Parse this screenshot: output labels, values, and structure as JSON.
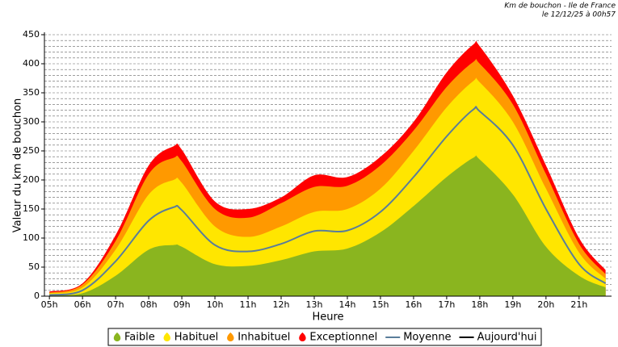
{
  "chart_data": {
    "type": "area",
    "title": "Km de bouchon - Ile de France",
    "subtitle": "le 12/12/25 à 00h57",
    "ylabel": "Valeur du  km de bouchon",
    "xlabel": "Heure",
    "x": [
      5,
      6,
      7,
      8,
      8.75,
      9,
      10,
      11,
      12,
      13,
      14,
      15,
      16,
      17,
      17.8,
      18,
      19,
      20,
      21,
      21.8
    ],
    "series": [
      {
        "name": "Faible",
        "type": "area",
        "color": "#8ab51f",
        "values": [
          2,
          5,
          35,
          80,
          88,
          85,
          55,
          52,
          62,
          77,
          82,
          110,
          155,
          205,
          238,
          235,
          175,
          85,
          35,
          15
        ]
      },
      {
        "name": "Habituel",
        "type": "area",
        "color": "#ffe600",
        "values": [
          5,
          15,
          80,
          175,
          200,
          195,
          120,
          102,
          120,
          145,
          150,
          185,
          250,
          325,
          370,
          368,
          300,
          185,
          75,
          30
        ]
      },
      {
        "name": "Inhabituel",
        "type": "area",
        "color": "#ff9900",
        "values": [
          6,
          20,
          95,
          210,
          238,
          232,
          150,
          135,
          160,
          188,
          190,
          225,
          285,
          360,
          403,
          400,
          330,
          210,
          90,
          38
        ]
      },
      {
        "name": "Exceptionnel",
        "type": "area",
        "color": "#ff0000",
        "values": [
          8,
          22,
          105,
          225,
          258,
          252,
          163,
          150,
          170,
          208,
          205,
          240,
          300,
          385,
          433,
          430,
          345,
          225,
          100,
          45
        ]
      },
      {
        "name": "Moyenne",
        "type": "line",
        "color": "#5a7d9a",
        "values": [
          2,
          10,
          60,
          130,
          153,
          148,
          88,
          77,
          90,
          112,
          113,
          145,
          205,
          275,
          321,
          318,
          260,
          150,
          55,
          22
        ]
      },
      {
        "name": "Aujourd'hui",
        "type": "line",
        "color": "#000000",
        "values": [
          null,
          null,
          null,
          null,
          null,
          null,
          null,
          null,
          null,
          null,
          null,
          null,
          null,
          null,
          null,
          null,
          null,
          null,
          null,
          null
        ]
      }
    ],
    "xlim": [
      4.85,
      21.98
    ],
    "xticks": [
      {
        "value": 5,
        "label": "05h"
      },
      {
        "value": 6,
        "label": "06h"
      },
      {
        "value": 7,
        "label": "07h"
      },
      {
        "value": 8,
        "label": "08h"
      },
      {
        "value": 9,
        "label": "09h"
      },
      {
        "value": 10,
        "label": "10h"
      },
      {
        "value": 11,
        "label": "11h"
      },
      {
        "value": 12,
        "label": "12h"
      },
      {
        "value": 13,
        "label": "13h"
      },
      {
        "value": 14,
        "label": "14h"
      },
      {
        "value": 15,
        "label": "15h"
      },
      {
        "value": 16,
        "label": "16h"
      },
      {
        "value": 17,
        "label": "17h"
      },
      {
        "value": 18,
        "label": "18h"
      },
      {
        "value": 19,
        "label": "19h"
      },
      {
        "value": 20,
        "label": "20h"
      },
      {
        "value": 21,
        "label": "21h"
      }
    ],
    "ylim": [
      0,
      450
    ],
    "yticks": [
      0,
      50,
      100,
      150,
      200,
      250,
      300,
      350,
      400,
      450
    ],
    "yminorticks": [
      0,
      10,
      20,
      30,
      40,
      50,
      60,
      70,
      80,
      90,
      100,
      110,
      120,
      130,
      140,
      150,
      160,
      170,
      180,
      190,
      200,
      210,
      220,
      230,
      240,
      250,
      260,
      270,
      280,
      290,
      300,
      310,
      320,
      330,
      340,
      350,
      360,
      370,
      380,
      390,
      400,
      410,
      420,
      430,
      440,
      450
    ],
    "grid": true,
    "legend": "bottom"
  }
}
